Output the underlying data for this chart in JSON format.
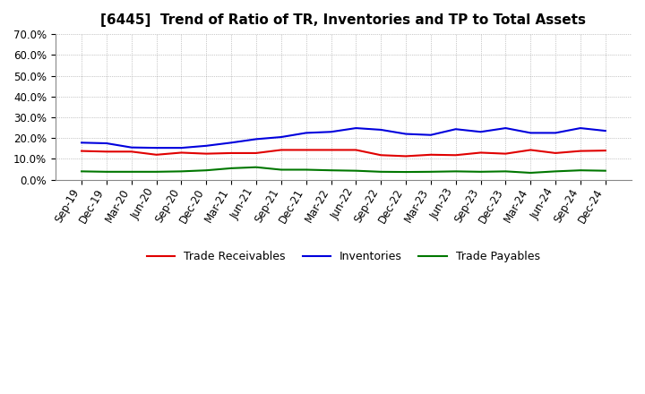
{
  "title": "[6445]  Trend of Ratio of TR, Inventories and TP to Total Assets",
  "x_labels": [
    "Sep-19",
    "Dec-19",
    "Mar-20",
    "Jun-20",
    "Sep-20",
    "Dec-20",
    "Mar-21",
    "Jun-21",
    "Sep-21",
    "Dec-21",
    "Mar-22",
    "Jun-22",
    "Sep-22",
    "Dec-22",
    "Mar-23",
    "Jun-23",
    "Sep-23",
    "Dec-23",
    "Mar-24",
    "Jun-24",
    "Sep-24",
    "Dec-24"
  ],
  "trade_receivables": [
    0.138,
    0.135,
    0.135,
    0.12,
    0.13,
    0.125,
    0.128,
    0.128,
    0.143,
    0.143,
    0.143,
    0.143,
    0.118,
    0.113,
    0.12,
    0.118,
    0.13,
    0.125,
    0.143,
    0.128,
    0.138,
    0.14
  ],
  "inventories": [
    0.178,
    0.175,
    0.155,
    0.153,
    0.153,
    0.163,
    0.178,
    0.195,
    0.205,
    0.225,
    0.23,
    0.248,
    0.24,
    0.22,
    0.215,
    0.243,
    0.23,
    0.248,
    0.225,
    0.225,
    0.248,
    0.235
  ],
  "trade_payables": [
    0.04,
    0.038,
    0.038,
    0.038,
    0.04,
    0.045,
    0.055,
    0.06,
    0.048,
    0.048,
    0.045,
    0.043,
    0.038,
    0.037,
    0.038,
    0.04,
    0.038,
    0.04,
    0.033,
    0.04,
    0.045,
    0.043
  ],
  "tr_color": "#e00000",
  "inv_color": "#0000dd",
  "tp_color": "#007700",
  "ylim": [
    0.0,
    0.7
  ],
  "yticks": [
    0.0,
    0.1,
    0.2,
    0.3,
    0.4,
    0.5,
    0.6,
    0.7
  ],
  "legend_labels": [
    "Trade Receivables",
    "Inventories",
    "Trade Payables"
  ],
  "bg_color": "#ffffff",
  "grid_color": "#999999",
  "line_width": 1.5,
  "title_fontsize": 11,
  "tick_fontsize": 8.5,
  "legend_fontsize": 9
}
